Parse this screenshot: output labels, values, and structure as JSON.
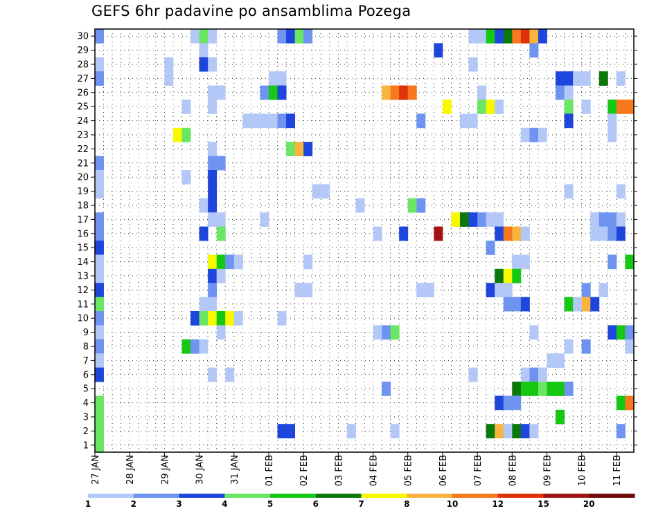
{
  "chart_data": {
    "type": "heatmap",
    "title": "GEFS 6hr padavine po ansamblima Pozega",
    "xlabel": "",
    "ylabel": "",
    "x_tick_labels": [
      "27 JAN",
      "28 JAN",
      "29 JAN",
      "30 JAN",
      "31 JAN",
      "01 FEB",
      "02 FEB",
      "03 FEB",
      "04 FEB",
      "05 FEB",
      "06 FEB",
      "07 FEB",
      "08 FEB",
      "09 FEB",
      "10 FEB",
      "11 FEB"
    ],
    "x_range_steps": [
      0,
      61
    ],
    "steps_per_day": 4,
    "y_tick_labels": [
      "1",
      "2",
      "3",
      "4",
      "5",
      "6",
      "7",
      "8",
      "9",
      "10",
      "11",
      "12",
      "13",
      "14",
      "15",
      "16",
      "17",
      "18",
      "19",
      "20",
      "21",
      "22",
      "23",
      "24",
      "25",
      "26",
      "27",
      "28",
      "29",
      "30"
    ],
    "ylim": [
      0.5,
      30.5
    ],
    "grid": true,
    "colorbar": {
      "labels": [
        "1",
        "2",
        "3",
        "4",
        "5",
        "6",
        "7",
        "8",
        "10",
        "12",
        "15",
        "20"
      ],
      "colors": [
        "#b4c8f8",
        "#6e94f0",
        "#1e46dc",
        "#6ae664",
        "#14c814",
        "#0a780a",
        "#f8f800",
        "#f8b43c",
        "#f8781e",
        "#e0320a",
        "#a01414",
        "#6e0a0a"
      ]
    },
    "cells": [
      [
        30,
        0,
        2
      ],
      [
        30,
        11,
        1
      ],
      [
        30,
        12,
        4
      ],
      [
        30,
        13,
        1
      ],
      [
        30,
        21,
        2
      ],
      [
        30,
        22,
        3
      ],
      [
        30,
        23,
        4
      ],
      [
        30,
        24,
        2
      ],
      [
        30,
        43,
        1
      ],
      [
        30,
        44,
        1
      ],
      [
        30,
        45,
        5
      ],
      [
        30,
        46,
        3
      ],
      [
        30,
        47,
        6
      ],
      [
        30,
        48,
        9
      ],
      [
        30,
        49,
        10
      ],
      [
        30,
        50,
        8
      ],
      [
        30,
        51,
        3
      ],
      [
        29,
        12,
        1
      ],
      [
        29,
        39,
        3
      ],
      [
        29,
        50,
        2
      ],
      [
        28,
        0,
        1
      ],
      [
        28,
        8,
        1
      ],
      [
        28,
        12,
        3
      ],
      [
        28,
        13,
        1
      ],
      [
        28,
        43,
        1
      ],
      [
        27,
        0,
        2
      ],
      [
        27,
        8,
        1
      ],
      [
        27,
        20,
        1
      ],
      [
        27,
        21,
        1
      ],
      [
        27,
        53,
        3
      ],
      [
        27,
        54,
        3
      ],
      [
        27,
        55,
        1
      ],
      [
        27,
        56,
        1
      ],
      [
        27,
        58,
        6
      ],
      [
        27,
        60,
        1
      ],
      [
        26,
        13,
        1
      ],
      [
        26,
        14,
        1
      ],
      [
        26,
        19,
        2
      ],
      [
        26,
        20,
        5
      ],
      [
        26,
        21,
        3
      ],
      [
        26,
        33,
        8
      ],
      [
        26,
        34,
        9
      ],
      [
        26,
        35,
        10
      ],
      [
        26,
        36,
        9
      ],
      [
        26,
        44,
        1
      ],
      [
        26,
        53,
        2
      ],
      [
        26,
        54,
        1
      ],
      [
        25,
        10,
        1
      ],
      [
        25,
        13,
        1
      ],
      [
        25,
        40,
        7
      ],
      [
        25,
        44,
        4
      ],
      [
        25,
        45,
        7
      ],
      [
        25,
        46,
        1
      ],
      [
        25,
        54,
        4
      ],
      [
        25,
        56,
        1
      ],
      [
        25,
        59,
        5
      ],
      [
        25,
        60,
        9
      ],
      [
        25,
        61,
        9
      ],
      [
        24,
        17,
        1
      ],
      [
        24,
        18,
        1
      ],
      [
        24,
        19,
        1
      ],
      [
        24,
        20,
        1
      ],
      [
        24,
        21,
        2
      ],
      [
        24,
        22,
        3
      ],
      [
        24,
        37,
        2
      ],
      [
        24,
        42,
        1
      ],
      [
        24,
        43,
        1
      ],
      [
        24,
        54,
        3
      ],
      [
        24,
        59,
        1
      ],
      [
        23,
        9,
        7
      ],
      [
        23,
        10,
        4
      ],
      [
        23,
        49,
        1
      ],
      [
        23,
        50,
        2
      ],
      [
        23,
        51,
        1
      ],
      [
        23,
        59,
        1
      ],
      [
        22,
        13,
        1
      ],
      [
        22,
        22,
        4
      ],
      [
        22,
        23,
        8
      ],
      [
        22,
        24,
        3
      ],
      [
        21,
        0,
        2
      ],
      [
        21,
        13,
        2
      ],
      [
        21,
        14,
        2
      ],
      [
        20,
        0,
        1
      ],
      [
        20,
        10,
        1
      ],
      [
        20,
        13,
        3
      ],
      [
        19,
        0,
        1
      ],
      [
        19,
        13,
        3
      ],
      [
        19,
        25,
        1
      ],
      [
        19,
        26,
        1
      ],
      [
        19,
        54,
        1
      ],
      [
        19,
        60,
        1
      ],
      [
        18,
        12,
        1
      ],
      [
        18,
        13,
        3
      ],
      [
        18,
        30,
        1
      ],
      [
        18,
        36,
        4
      ],
      [
        18,
        37,
        2
      ],
      [
        17,
        0,
        2
      ],
      [
        17,
        13,
        1
      ],
      [
        17,
        14,
        1
      ],
      [
        17,
        19,
        1
      ],
      [
        17,
        41,
        7
      ],
      [
        17,
        42,
        6
      ],
      [
        17,
        43,
        3
      ],
      [
        17,
        44,
        2
      ],
      [
        17,
        45,
        1
      ],
      [
        17,
        46,
        1
      ],
      [
        17,
        57,
        1
      ],
      [
        17,
        58,
        2
      ],
      [
        17,
        59,
        2
      ],
      [
        17,
        60,
        1
      ],
      [
        16,
        0,
        2
      ],
      [
        16,
        12,
        3
      ],
      [
        16,
        14,
        4
      ],
      [
        16,
        32,
        1
      ],
      [
        16,
        35,
        3
      ],
      [
        16,
        39,
        11
      ],
      [
        16,
        46,
        3
      ],
      [
        16,
        47,
        9
      ],
      [
        16,
        48,
        8
      ],
      [
        16,
        49,
        1
      ],
      [
        16,
        57,
        1
      ],
      [
        16,
        58,
        1
      ],
      [
        16,
        59,
        2
      ],
      [
        16,
        60,
        3
      ],
      [
        15,
        0,
        3
      ],
      [
        15,
        45,
        2
      ],
      [
        14,
        0,
        1
      ],
      [
        14,
        13,
        7
      ],
      [
        14,
        14,
        5
      ],
      [
        14,
        15,
        2
      ],
      [
        14,
        16,
        1
      ],
      [
        14,
        24,
        1
      ],
      [
        14,
        48,
        1
      ],
      [
        14,
        49,
        1
      ],
      [
        14,
        59,
        2
      ],
      [
        14,
        61,
        5
      ],
      [
        13,
        0,
        1
      ],
      [
        13,
        13,
        3
      ],
      [
        13,
        14,
        1
      ],
      [
        13,
        46,
        6
      ],
      [
        13,
        47,
        7
      ],
      [
        13,
        48,
        5
      ],
      [
        12,
        0,
        3
      ],
      [
        12,
        13,
        2
      ],
      [
        12,
        23,
        1
      ],
      [
        12,
        24,
        1
      ],
      [
        12,
        37,
        1
      ],
      [
        12,
        38,
        1
      ],
      [
        12,
        45,
        3
      ],
      [
        12,
        46,
        1
      ],
      [
        12,
        47,
        1
      ],
      [
        12,
        56,
        2
      ],
      [
        12,
        58,
        1
      ],
      [
        11,
        0,
        4
      ],
      [
        11,
        12,
        1
      ],
      [
        11,
        13,
        1
      ],
      [
        11,
        47,
        2
      ],
      [
        11,
        48,
        2
      ],
      [
        11,
        49,
        3
      ],
      [
        11,
        54,
        5
      ],
      [
        11,
        55,
        1
      ],
      [
        11,
        56,
        8
      ],
      [
        11,
        57,
        3
      ],
      [
        10,
        0,
        2
      ],
      [
        10,
        11,
        3
      ],
      [
        10,
        12,
        4
      ],
      [
        10,
        13,
        7
      ],
      [
        10,
        14,
        5
      ],
      [
        10,
        15,
        7
      ],
      [
        10,
        16,
        1
      ],
      [
        10,
        21,
        1
      ],
      [
        9,
        0,
        1
      ],
      [
        9,
        14,
        1
      ],
      [
        9,
        32,
        1
      ],
      [
        9,
        33,
        2
      ],
      [
        9,
        34,
        4
      ],
      [
        9,
        50,
        1
      ],
      [
        9,
        59,
        3
      ],
      [
        9,
        60,
        5
      ],
      [
        9,
        61,
        2
      ],
      [
        8,
        0,
        2
      ],
      [
        8,
        10,
        5
      ],
      [
        8,
        11,
        2
      ],
      [
        8,
        12,
        1
      ],
      [
        8,
        54,
        1
      ],
      [
        8,
        56,
        2
      ],
      [
        8,
        61,
        1
      ],
      [
        7,
        0,
        1
      ],
      [
        7,
        52,
        1
      ],
      [
        7,
        53,
        1
      ],
      [
        6,
        0,
        3
      ],
      [
        6,
        13,
        1
      ],
      [
        6,
        15,
        1
      ],
      [
        6,
        43,
        1
      ],
      [
        6,
        49,
        1
      ],
      [
        6,
        50,
        2
      ],
      [
        6,
        51,
        1
      ],
      [
        5,
        33,
        2
      ],
      [
        5,
        48,
        6
      ],
      [
        5,
        49,
        5
      ],
      [
        5,
        50,
        5
      ],
      [
        5,
        51,
        4
      ],
      [
        5,
        52,
        5
      ],
      [
        5,
        53,
        5
      ],
      [
        5,
        54,
        2
      ],
      [
        4,
        0,
        4
      ],
      [
        4,
        46,
        3
      ],
      [
        4,
        47,
        2
      ],
      [
        4,
        48,
        2
      ],
      [
        4,
        60,
        5
      ],
      [
        4,
        61,
        9
      ],
      [
        3,
        0,
        4
      ],
      [
        3,
        53,
        5
      ],
      [
        2,
        0,
        4
      ],
      [
        2,
        21,
        3
      ],
      [
        2,
        22,
        3
      ],
      [
        2,
        29,
        1
      ],
      [
        2,
        34,
        1
      ],
      [
        2,
        45,
        6
      ],
      [
        2,
        46,
        8
      ],
      [
        2,
        47,
        1
      ],
      [
        2,
        48,
        6
      ],
      [
        2,
        49,
        3
      ],
      [
        2,
        50,
        1
      ],
      [
        2,
        60,
        2
      ],
      [
        1,
        0,
        4
      ]
    ]
  }
}
